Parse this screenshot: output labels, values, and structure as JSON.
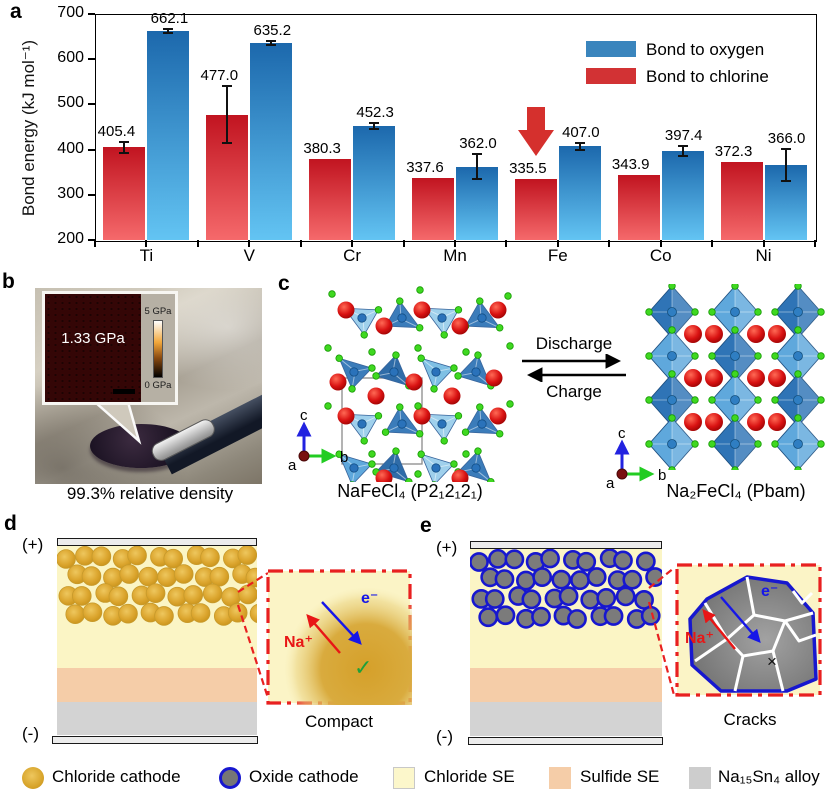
{
  "figure": {
    "panel_letters": {
      "a": "a",
      "b": "b",
      "c": "c",
      "d": "d",
      "e": "e"
    }
  },
  "chart_data": {
    "type": "bar",
    "title": "",
    "ylabel": "Bond energy (kJ mol⁻¹)",
    "xlabel": "",
    "categories": [
      "Ti",
      "V",
      "Cr",
      "Mn",
      "Fe",
      "Co",
      "Ni"
    ],
    "series": [
      {
        "name": "Bond to chlorine",
        "color_top": "#c11420",
        "color_bottom": "#f5696b",
        "values": [
          405.4,
          477.0,
          380.3,
          337.6,
          335.5,
          343.9,
          372.3
        ],
        "errors": [
          12,
          63,
          0,
          0,
          0,
          0,
          0
        ]
      },
      {
        "name": "Bond to oxygen",
        "color_top": "#1c68ac",
        "color_bottom": "#63c4f3",
        "values": [
          662.1,
          635.2,
          452.3,
          362.0,
          407.0,
          397.4,
          366.0
        ],
        "errors": [
          5,
          4,
          7,
          28,
          7,
          11,
          36
        ]
      }
    ],
    "ylim": [
      200,
      700
    ],
    "yticks": [
      200,
      300,
      400,
      500,
      600,
      700
    ],
    "grid": false,
    "legend_position": "top-right",
    "legend": [
      {
        "label": "Bond to oxygen",
        "color": "#3a85bd"
      },
      {
        "label": "Bond to chlorine",
        "color": "#d23234"
      }
    ],
    "annotation": {
      "type": "down-arrow",
      "target_category": "Fe",
      "target_series": "Bond to chlorine",
      "color": "#d5302d"
    }
  },
  "panel_b": {
    "inset_value": "1.33 GPa",
    "scalebar_top": "5 GPa",
    "scalebar_bottom": "0 GPa",
    "caption": "99.3% relative density"
  },
  "panel_c": {
    "left_label": "NaFeCl₄ (P2₁2₁2₁)",
    "right_label": "Na₂FeCl₄ (Pbam)",
    "forward_label": "Discharge",
    "reverse_label": "Charge",
    "axis_a": "a",
    "axis_b": "b",
    "axis_c": "c"
  },
  "panel_d": {
    "positive": "(+)",
    "negative": "(-)",
    "ion_label": "Na⁺",
    "electron_label": "e⁻",
    "check_mark": "✓",
    "caption": "Compact"
  },
  "panel_e": {
    "positive": "(+)",
    "negative": "(-)",
    "ion_label": "Na⁺",
    "electron_label": "e⁻",
    "cross_mark": "×",
    "caption": "Cracks"
  },
  "bottom_legend": {
    "items": [
      {
        "label": "Chloride cathode",
        "swatch": "gold-circle"
      },
      {
        "label": "Oxide cathode",
        "swatch": "gray-circle-blue-ring"
      },
      {
        "label": "Chloride SE",
        "swatch": "pale-yellow-square"
      },
      {
        "label": "Sulfide SE",
        "swatch": "peach-square"
      },
      {
        "label": "Na₁₅Sn₄ alloy",
        "swatch": "gray-square"
      }
    ]
  },
  "colors": {
    "chloride_cathode": "#dca62f",
    "oxide_cathode_fill": "#7b7b7b",
    "oxide_cathode_ring": "#1717cf",
    "chloride_se": "#fbf5c5",
    "sulfide_se": "#f5cda8",
    "alloy": "#d3d3d3",
    "inset_border": "#e82020"
  }
}
